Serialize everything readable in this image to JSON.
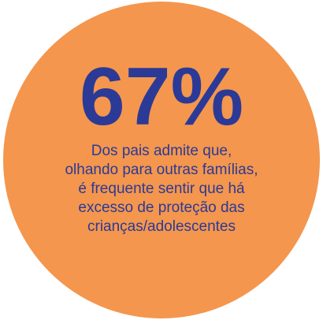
{
  "stat": {
    "value": "67%",
    "caption": [
      "Dos pais admite que,",
      "olhando para outras famílias,",
      "é frequente sentir que há",
      "excesso de proteção das",
      "crianças/adolescentes"
    ]
  }
}
